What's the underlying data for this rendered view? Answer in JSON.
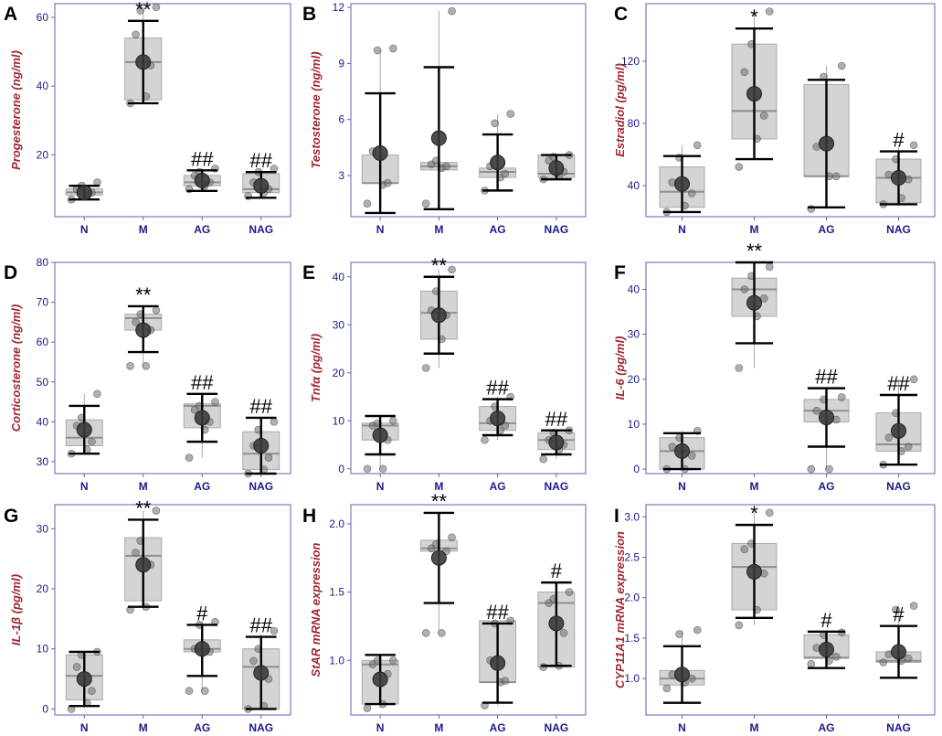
{
  "groups": [
    "N",
    "M",
    "AG",
    "NAG"
  ],
  "colors": {
    "frame": "#5b63b5",
    "box_fill": "#d4d4d4",
    "box_edge": "#a9a9a9",
    "mean": "#3a3a3a",
    "ylabel": "#a0282f",
    "ticks": "#1a1a8c"
  },
  "chart_data": [
    {
      "type": "box",
      "panel": "A",
      "ylabel": "Progesterone  (ng/ml)",
      "ylim": [
        2,
        64
      ],
      "yticks": [
        20,
        40,
        60
      ],
      "series": [
        {
          "group": "N",
          "mean": 9,
          "err": [
            7,
            11
          ],
          "box": [
            8.3,
            9.1,
            10.1
          ],
          "whisk": [
            7,
            12
          ],
          "points": [
            7,
            8,
            9,
            10,
            11,
            12
          ]
        },
        {
          "group": "M",
          "mean": 47,
          "err": [
            35,
            59
          ],
          "box": [
            36,
            47,
            54
          ],
          "whisk": [
            35,
            62
          ],
          "points": [
            35,
            37,
            46,
            55,
            62,
            63
          ]
        },
        {
          "group": "AG",
          "mean": 12.5,
          "err": [
            9.5,
            15.5
          ],
          "box": [
            11,
            12,
            14
          ],
          "whisk": [
            10,
            16
          ],
          "points": [
            10,
            11,
            12,
            14,
            15,
            16
          ]
        },
        {
          "group": "NAG",
          "mean": 11,
          "err": [
            7.5,
            15
          ],
          "box": [
            9,
            10,
            14.5
          ],
          "whisk": [
            8,
            16
          ],
          "points": [
            8,
            9,
            10,
            12,
            15,
            16
          ]
        }
      ],
      "annotations": [
        "**",
        "##",
        "##"
      ]
    },
    {
      "type": "box",
      "panel": "B",
      "ylabel": "Testosterone  (ng/ml)",
      "ylim": [
        0.8,
        12.2
      ],
      "yticks": [
        3,
        6,
        9,
        12
      ],
      "series": [
        {
          "group": "N",
          "mean": 4.2,
          "err": [
            1.0,
            7.4
          ],
          "box": [
            2.6,
            2.6,
            4.1
          ],
          "whisk": [
            1.5,
            9.7
          ],
          "points": [
            1.5,
            2.5,
            2.6,
            4.3,
            9.7,
            9.8
          ]
        },
        {
          "group": "M",
          "mean": 5.0,
          "err": [
            1.2,
            8.8
          ],
          "box": [
            3.3,
            3.5,
            3.7
          ],
          "whisk": [
            1.5,
            11.8
          ],
          "points": [
            1.5,
            3.4,
            3.5,
            3.6,
            3.8,
            11.8
          ]
        },
        {
          "group": "AG",
          "mean": 3.7,
          "err": [
            2.2,
            5.2
          ],
          "box": [
            2.9,
            3.2,
            3.4
          ],
          "whisk": [
            2.2,
            6.3
          ],
          "points": [
            2.2,
            2.9,
            3.1,
            3.5,
            5.8,
            6.3
          ]
        },
        {
          "group": "NAG",
          "mean": 3.4,
          "err": [
            2.8,
            4.1
          ],
          "box": [
            2.9,
            3.1,
            4.1
          ],
          "whisk": [
            2.8,
            4.1
          ],
          "points": [
            2.8,
            3.0,
            3.2,
            3.8,
            4.0,
            4.1
          ]
        }
      ],
      "annotations": []
    },
    {
      "type": "box",
      "panel": "C",
      "ylabel": "Estradiol  (pg/ml)",
      "ylim": [
        20,
        157
      ],
      "yticks": [
        40,
        80,
        120
      ],
      "series": [
        {
          "group": "N",
          "mean": 41,
          "err": [
            23,
            59
          ],
          "box": [
            26,
            36,
            52
          ],
          "whisk": [
            23,
            66
          ],
          "points": [
            23,
            27,
            35,
            42,
            58,
            66
          ]
        },
        {
          "group": "M",
          "mean": 99,
          "err": [
            57,
            141
          ],
          "box": [
            70,
            88,
            131
          ],
          "whisk": [
            57,
            152
          ],
          "points": [
            52,
            70,
            85,
            113,
            131,
            152
          ]
        },
        {
          "group": "AG",
          "mean": 67,
          "err": [
            26,
            108
          ],
          "box": [
            46,
            46,
            105
          ],
          "whisk": [
            25,
            117
          ],
          "points": [
            25,
            46,
            46,
            65,
            110,
            117
          ]
        },
        {
          "group": "NAG",
          "mean": 45,
          "err": [
            28,
            62
          ],
          "box": [
            29,
            45,
            57
          ],
          "whisk": [
            28,
            66
          ],
          "points": [
            28,
            32,
            44,
            47,
            57,
            66
          ]
        }
      ],
      "annotations": [
        "*",
        "#"
      ]
    },
    {
      "type": "box",
      "panel": "D",
      "ylabel": "Corticosterone  (ng/ml)",
      "ylim": [
        27,
        80
      ],
      "yticks": [
        30,
        40,
        50,
        60,
        70,
        80
      ],
      "series": [
        {
          "group": "N",
          "mean": 38,
          "err": [
            32,
            44
          ],
          "box": [
            34,
            36,
            40.5
          ],
          "whisk": [
            32,
            47
          ],
          "points": [
            32,
            33,
            35,
            39,
            41,
            47
          ]
        },
        {
          "group": "M",
          "mean": 63,
          "err": [
            57.5,
            69
          ],
          "box": [
            63,
            66,
            67
          ],
          "whisk": [
            54,
            68
          ],
          "points": [
            54,
            54,
            63,
            65,
            67,
            68
          ]
        },
        {
          "group": "AG",
          "mean": 41,
          "err": [
            35,
            47
          ],
          "box": [
            38.5,
            44,
            44.5
          ],
          "whisk": [
            31,
            45
          ],
          "points": [
            31,
            38,
            40,
            43,
            44,
            45
          ]
        },
        {
          "group": "NAG",
          "mean": 34,
          "err": [
            27,
            41
          ],
          "box": [
            28,
            32,
            37.5
          ],
          "whisk": [
            27,
            40
          ],
          "points": [
            27,
            28,
            31,
            34,
            38,
            40
          ]
        }
      ],
      "annotations": [
        "**",
        "##",
        "##"
      ]
    },
    {
      "type": "box",
      "panel": "E",
      "ylabel": "Tnfα  (pg/ml)",
      "ylim": [
        -1,
        43
      ],
      "yticks": [
        0,
        10,
        20,
        30,
        40
      ],
      "series": [
        {
          "group": "N",
          "mean": 7,
          "err": [
            3,
            11
          ],
          "box": [
            6,
            9,
            9.5
          ],
          "whisk": [
            0,
            10
          ],
          "points": [
            0,
            0,
            6,
            9,
            9.5,
            10
          ]
        },
        {
          "group": "M",
          "mean": 32,
          "err": [
            24,
            40
          ],
          "box": [
            27,
            32.5,
            37
          ],
          "whisk": [
            21,
            41.5
          ],
          "points": [
            21,
            27,
            32,
            33,
            37,
            41.5
          ]
        },
        {
          "group": "AG",
          "mean": 10.5,
          "err": [
            7,
            14.5
          ],
          "box": [
            8,
            9.5,
            13
          ],
          "whisk": [
            6,
            15
          ],
          "points": [
            6,
            8,
            9,
            10,
            13,
            15
          ]
        },
        {
          "group": "NAG",
          "mean": 5.5,
          "err": [
            3,
            8
          ],
          "box": [
            4,
            6,
            7.5
          ],
          "whisk": [
            2,
            8
          ],
          "points": [
            2,
            4,
            5,
            6,
            7.5,
            8
          ]
        }
      ],
      "annotations": [
        "**",
        "##",
        "##"
      ]
    },
    {
      "type": "box",
      "panel": "F",
      "ylabel": "IL-6  (pg/ml)",
      "ylim": [
        -1,
        46
      ],
      "yticks": [
        0,
        10,
        20,
        30,
        40
      ],
      "series": [
        {
          "group": "N",
          "mean": 4,
          "err": [
            0,
            8
          ],
          "box": [
            0,
            4,
            7
          ],
          "whisk": [
            0,
            8.5
          ],
          "points": [
            0,
            0,
            3,
            5,
            7,
            8.5
          ]
        },
        {
          "group": "M",
          "mean": 37,
          "err": [
            28,
            46
          ],
          "box": [
            34,
            40,
            42.5
          ],
          "whisk": [
            22.5,
            45
          ],
          "points": [
            22.5,
            34,
            38,
            40,
            43,
            45
          ]
        },
        {
          "group": "AG",
          "mean": 11.5,
          "err": [
            5,
            18
          ],
          "box": [
            10.5,
            13,
            15.5
          ],
          "whisk": [
            0,
            16
          ],
          "points": [
            0,
            0,
            11,
            13,
            15.5,
            16
          ]
        },
        {
          "group": "NAG",
          "mean": 8.5,
          "err": [
            1,
            16.5
          ],
          "box": [
            4,
            5.5,
            12.5
          ],
          "whisk": [
            1,
            20
          ],
          "points": [
            1,
            4,
            5,
            7,
            12.5,
            20
          ]
        }
      ],
      "annotations": [
        "**",
        "##",
        "##"
      ]
    },
    {
      "type": "box",
      "panel": "G",
      "ylabel": "IL-1β  (pg/ml)",
      "ylim": [
        -1,
        34
      ],
      "yticks": [
        0,
        10,
        20,
        30
      ],
      "series": [
        {
          "group": "N",
          "mean": 5,
          "err": [
            0.5,
            9.5
          ],
          "box": [
            1.5,
            5.5,
            9
          ],
          "whisk": [
            0,
            9.5
          ],
          "points": [
            0,
            1,
            3,
            7,
            9,
            9.5
          ]
        },
        {
          "group": "M",
          "mean": 24,
          "err": [
            17,
            31.5
          ],
          "box": [
            18,
            25.5,
            28.5
          ],
          "whisk": [
            16.5,
            33
          ],
          "points": [
            16.5,
            17,
            24,
            26,
            28,
            33
          ]
        },
        {
          "group": "AG",
          "mean": 10,
          "err": [
            5.5,
            14
          ],
          "box": [
            9.5,
            10,
            11.5
          ],
          "whisk": [
            3,
            14.5
          ],
          "points": [
            3,
            3,
            9.5,
            10,
            14,
            14.5
          ]
        },
        {
          "group": "NAG",
          "mean": 6,
          "err": [
            0,
            12
          ],
          "box": [
            0,
            7,
            10
          ],
          "whisk": [
            0,
            12.5
          ],
          "points": [
            0,
            0.5,
            5,
            8,
            10,
            13
          ]
        }
      ],
      "annotations": [
        "**",
        "#",
        "##"
      ]
    },
    {
      "type": "box",
      "panel": "H",
      "ylabel": "StAR mRNA expression",
      "ylim": [
        0.6,
        2.14
      ],
      "yticks": [
        1.0,
        1.5,
        2.0
      ],
      "labels": {
        "y1": "1.0",
        "y2": "1.5",
        "y3": "2.0"
      },
      "series": [
        {
          "group": "N",
          "mean": 0.86,
          "err": [
            0.68,
            1.04
          ],
          "box": [
            0.68,
            0.97,
            1.0
          ],
          "whisk": [
            0.65,
            1.0
          ],
          "points": [
            0.65,
            0.68,
            0.9,
            0.97,
            1.0,
            1.0
          ]
        },
        {
          "group": "M",
          "mean": 1.75,
          "err": [
            1.42,
            2.08
          ],
          "box": [
            1.8,
            1.82,
            1.88
          ],
          "whisk": [
            1.2,
            1.88
          ],
          "points": [
            1.2,
            1.2,
            1.8,
            1.82,
            1.85,
            1.9
          ]
        },
        {
          "group": "AG",
          "mean": 0.98,
          "err": [
            0.69,
            1.27
          ],
          "box": [
            0.84,
            0.84,
            1.29
          ],
          "whisk": [
            0.67,
            1.29
          ],
          "points": [
            0.67,
            0.84,
            0.85,
            1.0,
            1.27,
            1.29
          ]
        },
        {
          "group": "NAG",
          "mean": 1.27,
          "err": [
            0.96,
            1.57
          ],
          "box": [
            0.95,
            1.42,
            1.5
          ],
          "whisk": [
            0.95,
            1.52
          ],
          "points": [
            0.95,
            0.96,
            1.2,
            1.42,
            1.45,
            1.5
          ]
        }
      ],
      "annotations": [
        "**",
        "##",
        "#"
      ]
    },
    {
      "type": "box",
      "panel": "I",
      "ylabel": "CYP11A1 mRNA expression",
      "ylim": [
        0.55,
        3.15
      ],
      "yticks": [
        1.0,
        1.5,
        2.0,
        2.5,
        3.0
      ],
      "labels": {
        "y1": "1.0",
        "y2": "1.5",
        "y3": "2.0",
        "y4": "2.5",
        "y5": "3.0"
      },
      "series": [
        {
          "group": "N",
          "mean": 1.05,
          "err": [
            0.7,
            1.4
          ],
          "box": [
            0.92,
            1.0,
            1.1
          ],
          "whisk": [
            0.88,
            1.6
          ],
          "points": [
            0.88,
            0.95,
            1.0,
            1.05,
            1.55,
            1.6
          ]
        },
        {
          "group": "M",
          "mean": 2.32,
          "err": [
            1.75,
            2.9
          ],
          "box": [
            1.85,
            2.38,
            2.67
          ],
          "whisk": [
            1.66,
            3.05
          ],
          "points": [
            1.66,
            1.85,
            2.3,
            2.6,
            2.67,
            3.05
          ]
        },
        {
          "group": "AG",
          "mean": 1.36,
          "err": [
            1.13,
            1.58
          ],
          "box": [
            1.25,
            1.26,
            1.54
          ],
          "whisk": [
            1.18,
            1.54
          ],
          "points": [
            1.18,
            1.22,
            1.27,
            1.38,
            1.54,
            1.57
          ]
        },
        {
          "group": "NAG",
          "mean": 1.33,
          "err": [
            1.01,
            1.65
          ],
          "box": [
            1.2,
            1.22,
            1.33
          ],
          "whisk": [
            1.2,
            1.9
          ],
          "points": [
            1.2,
            1.22,
            1.25,
            1.3,
            1.85,
            1.9
          ]
        }
      ],
      "annotations": [
        "*",
        "#",
        "#"
      ]
    }
  ]
}
